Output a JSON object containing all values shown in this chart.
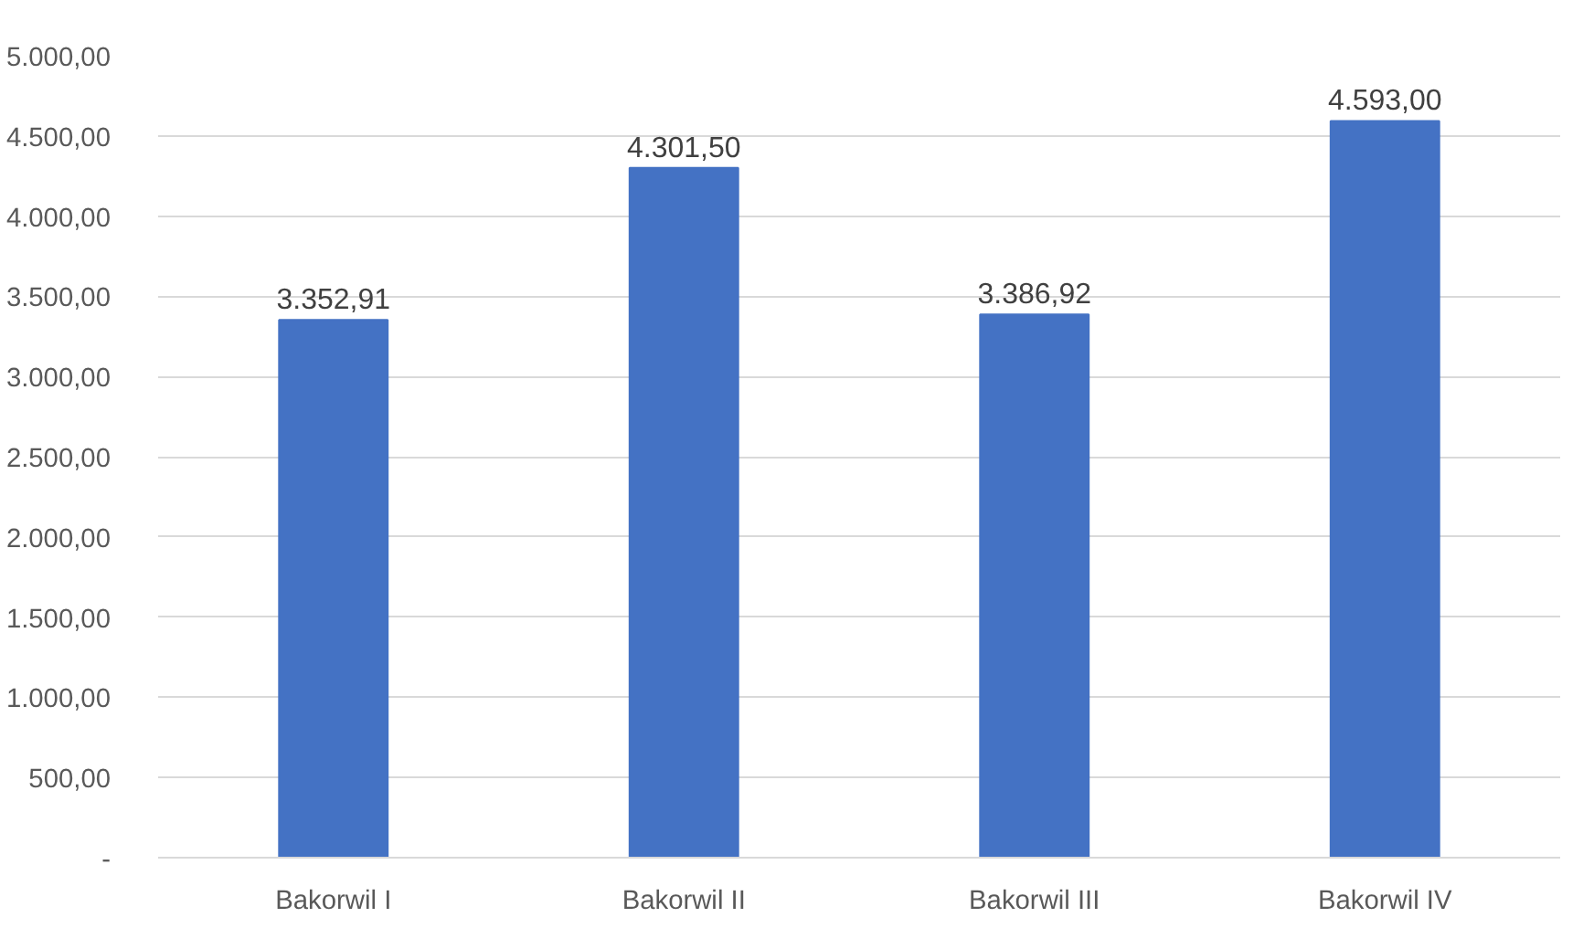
{
  "chart_data": {
    "type": "bar",
    "categories": [
      "Bakorwil I",
      "Bakorwil II",
      "Bakorwil III",
      "Bakorwil IV"
    ],
    "values": [
      3352.91,
      4301.5,
      3386.92,
      4593.0
    ],
    "value_labels": [
      "3.352,91",
      "4.301,50",
      "3.386,92",
      "4.593,00"
    ],
    "color": "#4472c4",
    "ylim": [
      0,
      5000
    ],
    "yticks": [
      {
        "value": 0,
        "label": "-"
      },
      {
        "value": 500,
        "label": "500,00"
      },
      {
        "value": 1000,
        "label": "1.000,00"
      },
      {
        "value": 1500,
        "label": "1.500,00"
      },
      {
        "value": 2000,
        "label": "2.000,00"
      },
      {
        "value": 2500,
        "label": "2.500,00"
      },
      {
        "value": 3000,
        "label": "3.000,00"
      },
      {
        "value": 3500,
        "label": "3.500,00"
      },
      {
        "value": 4000,
        "label": "4.000,00"
      },
      {
        "value": 4500,
        "label": "4.500,00"
      },
      {
        "value": 5000,
        "label": "5.000,00"
      }
    ],
    "grid": "y"
  }
}
